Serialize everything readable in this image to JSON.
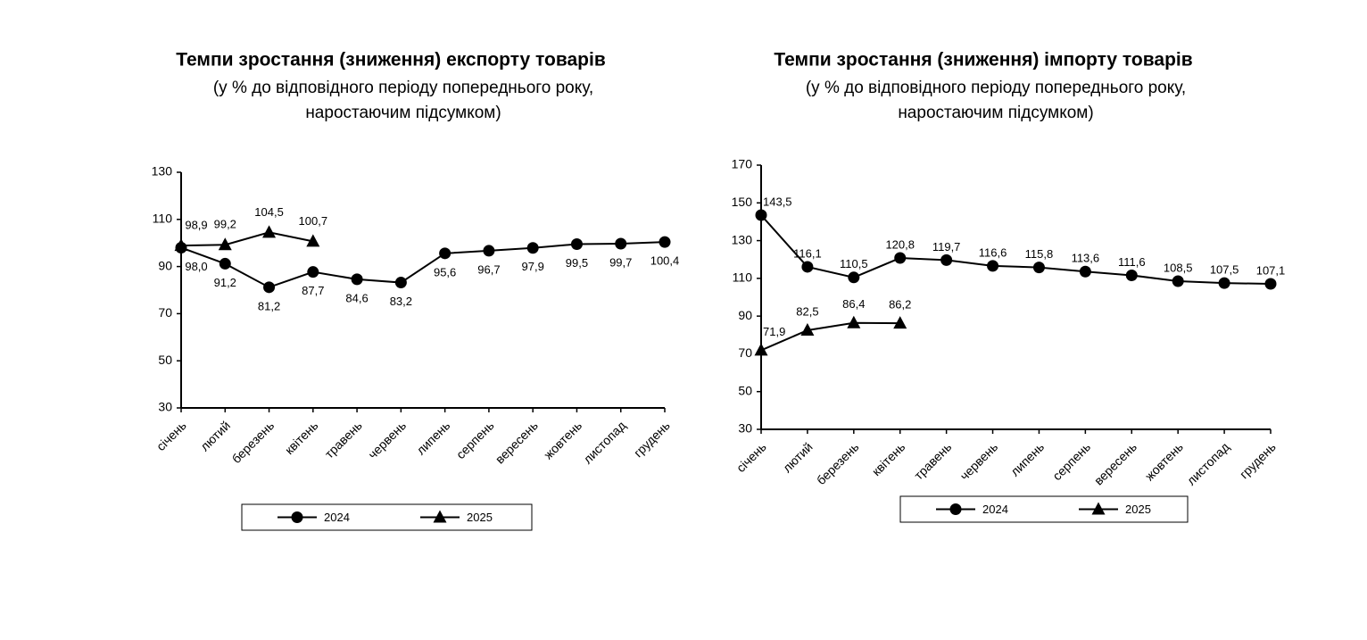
{
  "chart_data": [
    {
      "type": "line",
      "title": "Темпи зростання (зниження) експорту товарів",
      "subtitle": [
        "(у % до відповідного періоду попереднього року,",
        "наростаючим підсумком)"
      ],
      "categories": [
        "січень",
        "лютий",
        "березень",
        "квітень",
        "травень",
        "червень",
        "липень",
        "серпень",
        "вересень",
        "жовтень",
        "листопад",
        "грудень"
      ],
      "series": [
        {
          "name": "2024",
          "color": "#000000",
          "marker": "circle",
          "values": [
            98.0,
            91.2,
            81.2,
            87.7,
            84.6,
            83.2,
            95.6,
            96.7,
            97.9,
            99.5,
            99.7,
            100.4
          ],
          "value_labels": [
            "98,0",
            "91,2",
            "81,2",
            "87,7",
            "84,6",
            "83,2",
            "95,6",
            "96,7",
            "97,9",
            "99,5",
            "99,7",
            "100,4"
          ]
        },
        {
          "name": "2025",
          "color": "#000000",
          "marker": "triangle",
          "values": [
            98.9,
            99.2,
            104.5,
            100.7,
            null,
            null,
            null,
            null,
            null,
            null,
            null,
            null
          ],
          "value_labels": [
            "98,9",
            "99,2",
            "104,5",
            "100,7",
            null,
            null,
            null,
            null,
            null,
            null,
            null,
            null
          ]
        }
      ],
      "ylim": [
        30,
        130
      ],
      "yticks": [
        30,
        50,
        70,
        90,
        110,
        130
      ],
      "legend": "bottom"
    },
    {
      "type": "line",
      "title": "Темпи зростання (зниження) імпорту товарів",
      "subtitle": [
        "(у % до відповідного періоду попереднього року,",
        "наростаючим підсумком)"
      ],
      "categories": [
        "січень",
        "лютий",
        "березень",
        "квітень",
        "травень",
        "червень",
        "липень",
        "серпень",
        "вересень",
        "жовтень",
        "листопад",
        "грудень"
      ],
      "series": [
        {
          "name": "2024",
          "color": "#000000",
          "marker": "circle",
          "values": [
            143.5,
            116.1,
            110.5,
            120.8,
            119.7,
            116.6,
            115.8,
            113.6,
            111.6,
            108.5,
            107.5,
            107.1
          ],
          "value_labels": [
            "143,5",
            "116,1",
            "110,5",
            "120,8",
            "119,7",
            "116,6",
            "115,8",
            "113,6",
            "111,6",
            "108,5",
            "107,5",
            "107,1"
          ]
        },
        {
          "name": "2025",
          "color": "#000000",
          "marker": "triangle",
          "values": [
            71.9,
            82.5,
            86.4,
            86.2,
            null,
            null,
            null,
            null,
            null,
            null,
            null,
            null
          ],
          "value_labels": [
            "71,9",
            "82,5",
            "86,4",
            "86,2",
            null,
            null,
            null,
            null,
            null,
            null,
            null,
            null
          ]
        }
      ],
      "ylim": [
        30,
        170
      ],
      "yticks": [
        30,
        50,
        70,
        90,
        110,
        130,
        150,
        170
      ],
      "legend": "bottom"
    }
  ]
}
